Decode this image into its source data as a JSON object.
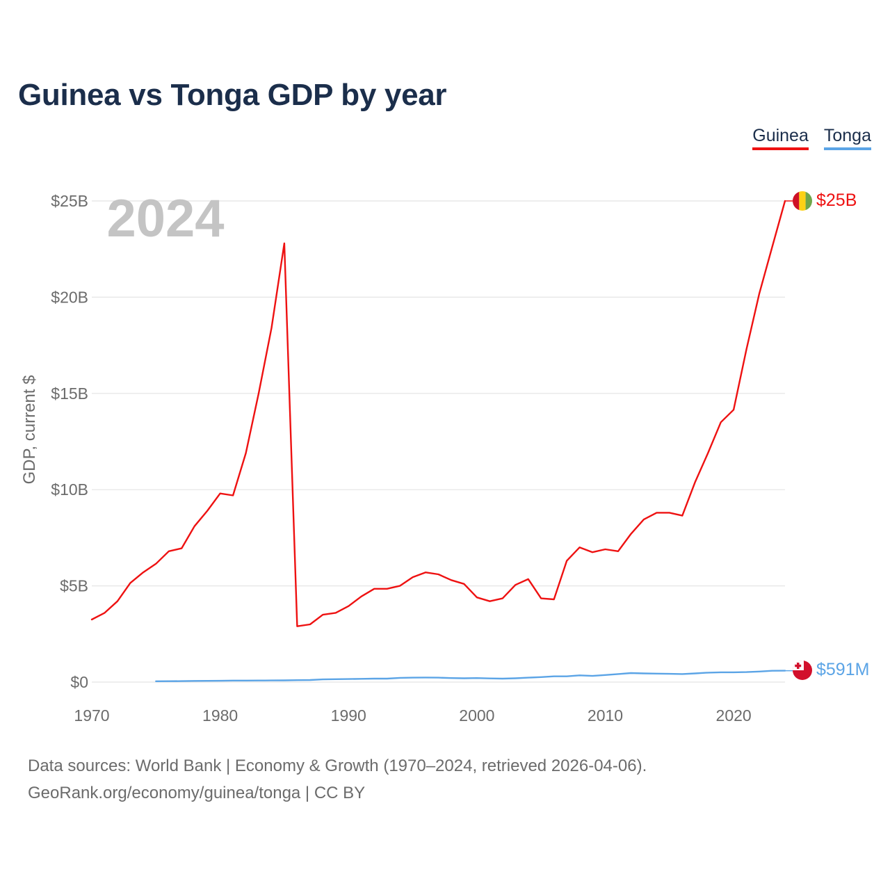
{
  "title": "Guinea vs Tonga GDP by year",
  "year_watermark": "2024",
  "legend": [
    {
      "label": "Guinea",
      "color": "#ee1111"
    },
    {
      "label": "Tonga",
      "color": "#5ba4e6"
    }
  ],
  "footer": {
    "line1": "Data sources: World Bank | Economy & Growth (1970–2024, retrieved 2026-04-06).",
    "line2": "GeoRank.org/economy/guinea/tonga | CC BY"
  },
  "chart_data": {
    "type": "line",
    "title": "Guinea vs Tonga GDP by year",
    "xlabel": "",
    "ylabel": "GDP, current $",
    "xlim": [
      1970,
      2024
    ],
    "ylim": [
      0,
      25
    ],
    "y_unit": "billion current US$",
    "grid": true,
    "legend_position": "top-right",
    "x_ticks": [
      {
        "value": 1970,
        "label": "1970"
      },
      {
        "value": 1980,
        "label": "1980"
      },
      {
        "value": 1990,
        "label": "1990"
      },
      {
        "value": 2000,
        "label": "2000"
      },
      {
        "value": 2010,
        "label": "2010"
      },
      {
        "value": 2020,
        "label": "2020"
      }
    ],
    "y_ticks": [
      {
        "value": 0,
        "label": "$0"
      },
      {
        "value": 5,
        "label": "$5B"
      },
      {
        "value": 10,
        "label": "$10B"
      },
      {
        "value": 15,
        "label": "$15B"
      },
      {
        "value": 20,
        "label": "$20B"
      },
      {
        "value": 25,
        "label": "$25B"
      }
    ],
    "series": [
      {
        "name": "Guinea",
        "color": "#ee1111",
        "end_label": "$25B",
        "x": [
          1970,
          1971,
          1972,
          1973,
          1974,
          1975,
          1976,
          1977,
          1978,
          1979,
          1980,
          1981,
          1982,
          1983,
          1984,
          1985,
          1986,
          1987,
          1988,
          1989,
          1990,
          1991,
          1992,
          1993,
          1994,
          1995,
          1996,
          1997,
          1998,
          1999,
          2000,
          2001,
          2002,
          2003,
          2004,
          2005,
          2006,
          2007,
          2008,
          2009,
          2010,
          2011,
          2012,
          2013,
          2014,
          2015,
          2016,
          2017,
          2018,
          2019,
          2020,
          2021,
          2022,
          2023,
          2024
        ],
        "values": [
          3.25,
          3.6,
          4.2,
          5.15,
          5.7,
          6.15,
          6.8,
          6.95,
          8.1,
          8.9,
          9.8,
          9.7,
          11.9,
          15.0,
          18.4,
          22.8,
          2.9,
          3.0,
          3.5,
          3.6,
          3.95,
          4.45,
          4.85,
          4.85,
          5.0,
          5.45,
          5.7,
          5.6,
          5.3,
          5.1,
          4.4,
          4.2,
          4.35,
          5.05,
          5.35,
          4.35,
          4.3,
          6.3,
          7.0,
          6.75,
          6.9,
          6.8,
          7.7,
          8.45,
          8.8,
          8.8,
          8.65,
          10.4,
          11.9,
          13.5,
          14.15,
          17.3,
          20.2,
          22.6,
          25.0
        ]
      },
      {
        "name": "Tonga",
        "color": "#5ba4e6",
        "end_label": "$591M",
        "x": [
          1975,
          1976,
          1977,
          1978,
          1979,
          1980,
          1981,
          1982,
          1983,
          1984,
          1985,
          1986,
          1987,
          1988,
          1989,
          1990,
          1991,
          1992,
          1993,
          1994,
          1995,
          1996,
          1997,
          1998,
          1999,
          2000,
          2001,
          2002,
          2003,
          2004,
          2005,
          2006,
          2007,
          2008,
          2009,
          2010,
          2011,
          2012,
          2013,
          2014,
          2015,
          2016,
          2017,
          2018,
          2019,
          2020,
          2021,
          2022,
          2023,
          2024
        ],
        "values": [
          0.045,
          0.048,
          0.052,
          0.06,
          0.065,
          0.07,
          0.078,
          0.08,
          0.082,
          0.085,
          0.09,
          0.1,
          0.11,
          0.14,
          0.15,
          0.16,
          0.17,
          0.18,
          0.18,
          0.22,
          0.23,
          0.24,
          0.23,
          0.21,
          0.2,
          0.21,
          0.19,
          0.18,
          0.2,
          0.23,
          0.26,
          0.3,
          0.3,
          0.35,
          0.32,
          0.37,
          0.42,
          0.47,
          0.45,
          0.44,
          0.43,
          0.42,
          0.45,
          0.49,
          0.51,
          0.51,
          0.52,
          0.55,
          0.59,
          0.591
        ]
      }
    ]
  }
}
